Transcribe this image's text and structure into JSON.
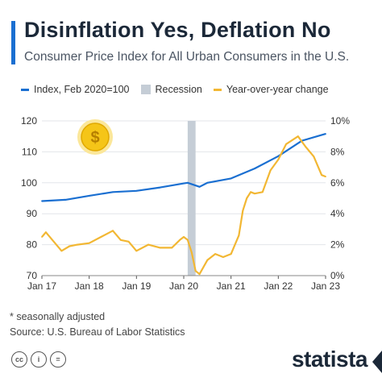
{
  "header": {
    "title": "Disinflation Yes, Deflation No",
    "subtitle": "Consumer Price Index for All Urban Consumers in the U.S."
  },
  "legend": {
    "index_label": "Index, Feb 2020=100",
    "recession_label": "Recession",
    "yoy_label": "Year-over-year change"
  },
  "colors": {
    "index": "#1a6fd1",
    "yoy": "#f2b733",
    "recession": "#c5cdd6",
    "accent": "#1a6fd1",
    "coin": "#f5c518"
  },
  "icons": {
    "coin": "dollar-coin-icon"
  },
  "chart_data": {
    "type": "line",
    "x_start": "2017-01",
    "x_end": "2023-01",
    "x_tick_labels": [
      "Jan 17",
      "Jan 18",
      "Jan 19",
      "Jan 20",
      "Jan 21",
      "Jan 22",
      "Jan 23"
    ],
    "y_left_lim": [
      70,
      120
    ],
    "y_left_ticks": [
      70,
      80,
      90,
      100,
      110,
      120
    ],
    "y_right_lim": [
      0,
      10
    ],
    "y_right_ticks": [
      "0%",
      "2%",
      "4%",
      "6%",
      "8%",
      "10%"
    ],
    "grid": true,
    "legend_position": "top",
    "recession": {
      "start": "2020-02",
      "end": "2020-04"
    },
    "series": [
      {
        "name": "Index, Feb 2020=100",
        "axis": "left",
        "x": [
          "2017-01",
          "2017-07",
          "2018-01",
          "2018-07",
          "2019-01",
          "2019-07",
          "2020-01",
          "2020-02",
          "2020-05",
          "2020-07",
          "2021-01",
          "2021-07",
          "2022-01",
          "2022-07",
          "2023-01"
        ],
        "values": [
          94.1,
          94.5,
          95.8,
          97.0,
          97.4,
          98.5,
          99.8,
          100.0,
          98.7,
          100.0,
          101.4,
          104.6,
          108.6,
          113.6,
          115.8
        ]
      },
      {
        "name": "Year-over-year change",
        "axis": "right",
        "x": [
          "2017-01",
          "2017-02",
          "2017-04",
          "2017-06",
          "2017-08",
          "2017-10",
          "2018-01",
          "2018-04",
          "2018-07",
          "2018-09",
          "2018-11",
          "2019-01",
          "2019-04",
          "2019-07",
          "2019-10",
          "2019-12",
          "2020-01",
          "2020-02",
          "2020-03",
          "2020-04",
          "2020-05",
          "2020-07",
          "2020-09",
          "2020-11",
          "2021-01",
          "2021-03",
          "2021-04",
          "2021-05",
          "2021-06",
          "2021-07",
          "2021-09",
          "2021-11",
          "2022-01",
          "2022-03",
          "2022-06",
          "2022-08",
          "2022-10",
          "2022-12",
          "2023-01"
        ],
        "values": [
          2.5,
          2.8,
          2.2,
          1.6,
          1.9,
          2.0,
          2.1,
          2.5,
          2.9,
          2.3,
          2.2,
          1.6,
          2.0,
          1.8,
          1.8,
          2.3,
          2.5,
          2.3,
          1.5,
          0.3,
          0.1,
          1.0,
          1.4,
          1.2,
          1.4,
          2.6,
          4.2,
          5.0,
          5.4,
          5.3,
          5.4,
          6.8,
          7.5,
          8.5,
          9.0,
          8.3,
          7.7,
          6.5,
          6.4
        ]
      }
    ]
  },
  "footer": {
    "note": "* seasonally adjusted",
    "source": "Source: U.S. Bureau of Labor Statistics",
    "brand": "statista",
    "cc_icons": [
      "cc",
      "i",
      "="
    ]
  }
}
